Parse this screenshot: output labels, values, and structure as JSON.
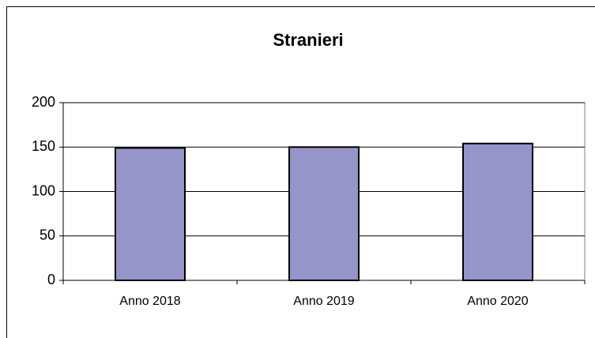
{
  "chart_data": {
    "type": "bar",
    "title": "Stranieri",
    "categories": [
      "Anno 2018",
      "Anno 2019",
      "Anno 2020"
    ],
    "values": [
      149,
      150,
      154
    ],
    "color": "#9595c9",
    "ylim": [
      0,
      200
    ],
    "yticks": [
      0,
      50,
      100,
      150,
      200
    ],
    "grid": true
  }
}
